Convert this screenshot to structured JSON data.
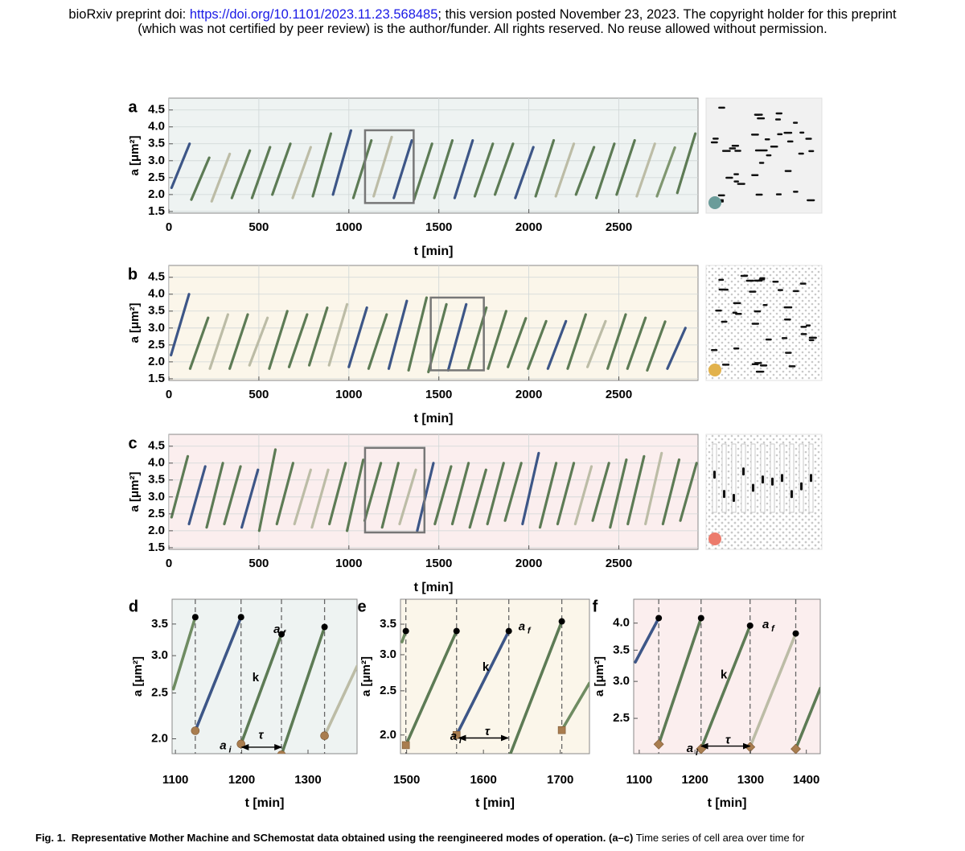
{
  "header": {
    "pre": "bioRxiv preprint doi:",
    "link": "https://doi.org/10.1101/2023.11.23.568485",
    "post": "; this version posted November 23, 2023. The copyright holder for this preprint",
    "line2": "(which was not certified by peer review) is the author/funder. All rights reserved. No reuse allowed without permission."
  },
  "chart_data": [
    {
      "type": "scatter",
      "label": "a",
      "xlabel": "t [min]",
      "ylabel": "a [μm²]",
      "xlim": [
        0,
        2940
      ],
      "ylim": [
        1.45,
        4.85
      ],
      "xticks": [
        0,
        500,
        1000,
        1500,
        2000,
        2500
      ],
      "yticks": [
        1.5,
        {
          "value": 2,
          "label": "2.0"
        },
        2.5,
        {
          "value": 3,
          "label": "3.0"
        },
        3.5,
        {
          "value": 4,
          "label": "4.0"
        },
        4.5
      ],
      "grid": true,
      "background": "#eef3f2",
      "condition_color": "#6b9c9a",
      "zoom_box": {
        "t": [
          1090,
          1360
        ],
        "a": [
          1.75,
          3.9
        ]
      },
      "cycles": [
        [
          15,
          115,
          2.2,
          3.5,
          "#3d5687"
        ],
        [
          125,
          225,
          1.85,
          3.1,
          "#5d7b55"
        ],
        [
          238,
          338,
          1.8,
          3.2,
          "#bcbca6"
        ],
        [
          350,
          450,
          1.9,
          3.3,
          "#5d7b55"
        ],
        [
          462,
          562,
          1.9,
          3.4,
          "#5d7b55"
        ],
        [
          575,
          675,
          2.0,
          3.5,
          "#5d7b55"
        ],
        [
          688,
          788,
          1.9,
          3.4,
          "#bcbca6"
        ],
        [
          800,
          900,
          1.95,
          3.8,
          "#5d7b55"
        ],
        [
          912,
          1012,
          2.0,
          3.9,
          "#3d5687"
        ],
        [
          1025,
          1125,
          1.9,
          3.6,
          "#5d7b55"
        ],
        [
          1138,
          1238,
          1.95,
          3.7,
          "#bcbca6"
        ],
        [
          1250,
          1350,
          1.9,
          3.6,
          "#3d5687"
        ],
        [
          1362,
          1462,
          1.85,
          3.5,
          "#5d7b55"
        ],
        [
          1475,
          1575,
          1.9,
          3.6,
          "#5d7b55"
        ],
        [
          1588,
          1688,
          1.9,
          3.6,
          "#3d5687"
        ],
        [
          1700,
          1800,
          1.95,
          3.5,
          "#5d7b55"
        ],
        [
          1812,
          1912,
          2.0,
          3.5,
          "#5d7b55"
        ],
        [
          1925,
          2025,
          1.9,
          3.4,
          "#3d5687"
        ],
        [
          2038,
          2138,
          1.95,
          3.6,
          "#5d7b55"
        ],
        [
          2150,
          2250,
          1.95,
          3.5,
          "#bcbca6"
        ],
        [
          2262,
          2362,
          2.0,
          3.4,
          "#5d7b55"
        ],
        [
          2375,
          2475,
          1.9,
          3.5,
          "#5d7b55"
        ],
        [
          2488,
          2588,
          2.0,
          3.6,
          "#5d7b55"
        ],
        [
          2600,
          2700,
          1.95,
          3.5,
          "#bcbca6"
        ],
        [
          2712,
          2812,
          1.95,
          3.4,
          "#7f9670"
        ],
        [
          2825,
          2925,
          2.05,
          3.8,
          "#5d7b55"
        ]
      ]
    },
    {
      "type": "scatter",
      "label": "b",
      "xlabel": "t [min]",
      "ylabel": "a [μm²]",
      "xlim": [
        0,
        2940
      ],
      "ylim": [
        1.45,
        4.85
      ],
      "xticks": [
        0,
        500,
        1000,
        1500,
        2000,
        2500
      ],
      "yticks": [
        1.5,
        {
          "value": 2,
          "label": "2.0"
        },
        2.5,
        {
          "value": 3,
          "label": "3.0"
        },
        3.5,
        {
          "value": 4,
          "label": "4.0"
        },
        4.5
      ],
      "grid": true,
      "background": "#fbf6ea",
      "condition_color": "#e2b24c",
      "zoom_box": {
        "t": [
          1455,
          1750
        ],
        "a": [
          1.75,
          3.9
        ]
      },
      "cycles": [
        [
          12,
          112,
          2.2,
          4.0,
          "#3d5687"
        ],
        [
          118,
          218,
          1.8,
          3.3,
          "#5d7b55"
        ],
        [
          228,
          328,
          1.8,
          3.4,
          "#bcbca6"
        ],
        [
          338,
          438,
          1.8,
          3.4,
          "#5d7b55"
        ],
        [
          448,
          548,
          1.9,
          3.3,
          "#bcbca6"
        ],
        [
          558,
          658,
          1.8,
          3.5,
          "#5d7b55"
        ],
        [
          668,
          768,
          1.85,
          3.4,
          "#5d7b55"
        ],
        [
          780,
          880,
          1.9,
          3.6,
          "#5d7b55"
        ],
        [
          890,
          990,
          1.9,
          3.7,
          "#bcbca6"
        ],
        [
          1000,
          1100,
          1.85,
          3.6,
          "#3d5687"
        ],
        [
          1110,
          1210,
          1.8,
          3.4,
          "#5d7b55"
        ],
        [
          1222,
          1322,
          1.8,
          3.8,
          "#3d5687"
        ],
        [
          1332,
          1432,
          1.75,
          3.9,
          "#5d7b55"
        ],
        [
          1442,
          1542,
          1.7,
          3.7,
          "#5d7b55"
        ],
        [
          1552,
          1652,
          1.75,
          3.7,
          "#3d5687"
        ],
        [
          1664,
          1764,
          1.8,
          3.6,
          "#5d7b55"
        ],
        [
          1774,
          1874,
          1.8,
          3.5,
          "#5d7b55"
        ],
        [
          1884,
          1984,
          1.85,
          3.3,
          "#5d7b55"
        ],
        [
          1996,
          2096,
          1.8,
          3.2,
          "#5d7b55"
        ],
        [
          2106,
          2206,
          1.8,
          3.2,
          "#3d5687"
        ],
        [
          2216,
          2316,
          1.8,
          3.4,
          "#5d7b55"
        ],
        [
          2326,
          2426,
          1.85,
          3.2,
          "#bcbca6"
        ],
        [
          2438,
          2538,
          1.8,
          3.4,
          "#5d7b55"
        ],
        [
          2548,
          2648,
          1.8,
          3.3,
          "#5d7b55"
        ],
        [
          2658,
          2758,
          1.75,
          3.2,
          "#5d7b55"
        ],
        [
          2770,
          2870,
          1.8,
          3.0,
          "#3d5687"
        ]
      ]
    },
    {
      "type": "scatter",
      "label": "c",
      "xlabel": "t [min]",
      "ylabel": "a [μm²]",
      "xlim": [
        0,
        2940
      ],
      "ylim": [
        1.45,
        4.85
      ],
      "xticks": [
        0,
        500,
        1000,
        1500,
        2000,
        2500
      ],
      "yticks": [
        1.5,
        {
          "value": 2,
          "label": "2.0"
        },
        2.5,
        {
          "value": 3,
          "label": "3.0"
        },
        3.5,
        {
          "value": 4,
          "label": "4.0"
        },
        4.5
      ],
      "grid": true,
      "background": "#fbeeee",
      "condition_color": "#ec7b6c",
      "zoom_box": {
        "t": [
          1090,
          1420
        ],
        "a": [
          1.95,
          4.45
        ]
      },
      "cycles": [
        [
          15,
          105,
          2.4,
          4.2,
          "#5d7b55"
        ],
        [
          112,
          202,
          2.2,
          3.9,
          "#3d5687"
        ],
        [
          210,
          300,
          2.1,
          4.0,
          "#5d7b55"
        ],
        [
          308,
          398,
          2.2,
          3.9,
          "#5d7b55"
        ],
        [
          405,
          495,
          2.1,
          3.8,
          "#3d5687"
        ],
        [
          502,
          592,
          2.0,
          4.4,
          "#5d7b55"
        ],
        [
          600,
          690,
          2.2,
          4.0,
          "#5d7b55"
        ],
        [
          698,
          788,
          2.2,
          3.8,
          "#bcbca6"
        ],
        [
          795,
          885,
          2.1,
          3.8,
          "#bcbca6"
        ],
        [
          892,
          982,
          2.2,
          4.0,
          "#5d7b55"
        ],
        [
          990,
          1080,
          2.0,
          4.1,
          "#5d7b55"
        ],
        [
          1088,
          1178,
          2.3,
          4.0,
          "#5d7b55"
        ],
        [
          1185,
          1275,
          2.1,
          4.0,
          "#5d7b55"
        ],
        [
          1282,
          1372,
          2.2,
          3.8,
          "#bcbca6"
        ],
        [
          1380,
          1470,
          2.0,
          4.0,
          "#3d5687"
        ],
        [
          1478,
          1568,
          2.2,
          3.9,
          "#5d7b55"
        ],
        [
          1575,
          1665,
          2.2,
          4.0,
          "#5d7b55"
        ],
        [
          1672,
          1762,
          2.1,
          3.8,
          "#5d7b55"
        ],
        [
          1770,
          1860,
          2.2,
          4.0,
          "#5d7b55"
        ],
        [
          1868,
          1958,
          2.3,
          4.0,
          "#5d7b55"
        ],
        [
          1965,
          2055,
          2.2,
          4.3,
          "#3d5687"
        ],
        [
          2062,
          2152,
          2.1,
          4.0,
          "#5d7b55"
        ],
        [
          2160,
          2250,
          2.2,
          4.0,
          "#5d7b55"
        ],
        [
          2258,
          2348,
          2.2,
          3.9,
          "#bcbca6"
        ],
        [
          2355,
          2445,
          2.3,
          4.0,
          "#5d7b55"
        ],
        [
          2452,
          2542,
          2.1,
          4.1,
          "#5d7b55"
        ],
        [
          2550,
          2640,
          2.2,
          4.2,
          "#5d7b55"
        ],
        [
          2648,
          2738,
          2.2,
          4.3,
          "#bcbca6"
        ],
        [
          2745,
          2835,
          2.2,
          4.1,
          "#5d7b55"
        ],
        [
          2842,
          2932,
          2.3,
          4.0,
          "#5d7b55"
        ]
      ]
    },
    {
      "type": "scatter",
      "label": "d",
      "xlabel": "t [min]",
      "ylabel": "a [μm²]",
      "xlim": [
        1095,
        1374
      ],
      "ylim": [
        1.86,
        3.95
      ],
      "ylog": true,
      "xticks": [
        1100,
        1200,
        1300
      ],
      "yticks": [
        {
          "value": 2,
          "label": "2.0"
        },
        2.5,
        {
          "value": 3,
          "label": "3.0"
        },
        3.5
      ],
      "grid": false,
      "background": "#eef3f2",
      "marker": "circle",
      "marker_color": "#a97d4f",
      "cycles": [
        [
          1097,
          1130,
          2.55,
          3.62,
          "#6f8c62"
        ],
        [
          1130,
          1199,
          2.08,
          3.62,
          "#3d5687"
        ],
        [
          1199,
          1260,
          1.95,
          3.33,
          "#5d7b55"
        ],
        [
          1260,
          1325,
          1.85,
          3.45,
          "#5d7b55"
        ],
        [
          1325,
          1374,
          2.03,
          2.85,
          "#bcbca6"
        ]
      ],
      "annotations": [
        {
          "text": "a",
          "sub": "i",
          "t": 1172,
          "a": 1.93
        },
        {
          "text": "a",
          "sub": "f",
          "t": 1253,
          "a": 3.4
        },
        {
          "text": "k",
          "t": 1221,
          "a": 2.69
        },
        {
          "text": "τ",
          "t": 1229,
          "a": 2.03
        }
      ],
      "tau_arrow": {
        "t": [
          1200,
          1260
        ],
        "a": 1.92
      }
    },
    {
      "type": "scatter",
      "label": "e",
      "xlabel": "t [min]",
      "ylabel": "a [μm²]",
      "xlim": [
        1492,
        1738
      ],
      "ylim": [
        1.82,
        3.97
      ],
      "ylog": true,
      "xticks": [
        1500,
        1600,
        1700
      ],
      "yticks": [
        {
          "value": 2,
          "label": "2.0"
        },
        2.5,
        {
          "value": 3,
          "label": "3.0"
        },
        3.5
      ],
      "grid": false,
      "background": "#fbf6ea",
      "marker": "square",
      "marker_color": "#a97d4f",
      "cycles": [
        [
          1494,
          1499,
          3.2,
          3.38,
          "#6f8c62"
        ],
        [
          1499,
          1565,
          1.9,
          3.38,
          "#5d7b55"
        ],
        [
          1565,
          1633,
          2.0,
          3.38,
          "#3d5687"
        ],
        [
          1633,
          1702,
          1.78,
          3.55,
          "#5d7b55"
        ],
        [
          1702,
          1738,
          2.05,
          2.6,
          "#6f8c62"
        ]
      ],
      "annotations": [
        {
          "text": "a",
          "sub": "i",
          "t": 1561,
          "a": 1.98
        },
        {
          "text": "a",
          "sub": "f",
          "t": 1650,
          "a": 3.45
        },
        {
          "text": "k",
          "t": 1603,
          "a": 2.81
        },
        {
          "text": "τ",
          "t": 1605,
          "a": 2.03
        }
      ],
      "tau_arrow": {
        "t": [
          1568,
          1632
        ],
        "a": 1.97
      }
    },
    {
      "type": "scatter",
      "label": "f",
      "xlabel": "t [min]",
      "ylabel": "a [μm²]",
      "xlim": [
        1090,
        1425
      ],
      "ylim": [
        2.1,
        4.5
      ],
      "ylog": true,
      "xticks": [
        1100,
        1200,
        1300,
        1400
      ],
      "yticks": [
        2.5,
        {
          "value": 3,
          "label": "3.0"
        },
        3.5,
        {
          "value": 4,
          "label": "4.0"
        }
      ],
      "grid": false,
      "background": "#fbeeee",
      "marker": "diamond",
      "marker_color": "#a97d4f",
      "cycles": [
        [
          1093,
          1135,
          3.3,
          4.1,
          "#3d5687"
        ],
        [
          1135,
          1211,
          2.2,
          4.1,
          "#5d7b55"
        ],
        [
          1211,
          1299,
          2.15,
          3.95,
          "#5d7b55"
        ],
        [
          1299,
          1381,
          2.17,
          3.8,
          "#bcbca6"
        ],
        [
          1381,
          1425,
          2.15,
          2.9,
          "#5d7b55"
        ]
      ],
      "annotations": [
        {
          "text": "a",
          "sub": "i",
          "t": 1191,
          "a": 2.15
        },
        {
          "text": "a",
          "sub": "f",
          "t": 1327,
          "a": 3.96
        },
        {
          "text": "k",
          "t": 1252,
          "a": 3.09
        },
        {
          "text": "τ",
          "t": 1259,
          "a": 2.24
        }
      ],
      "tau_arrow": {
        "t": [
          1211,
          1299
        ],
        "a": 2.18
      }
    }
  ],
  "caption": {
    "label": "Fig. 1.",
    "title": "Representative Mother Machine and SChemostat data obtained using the reengineered modes of operation.",
    "part": "(a–c)",
    "text": "Time series of cell area over time for"
  }
}
